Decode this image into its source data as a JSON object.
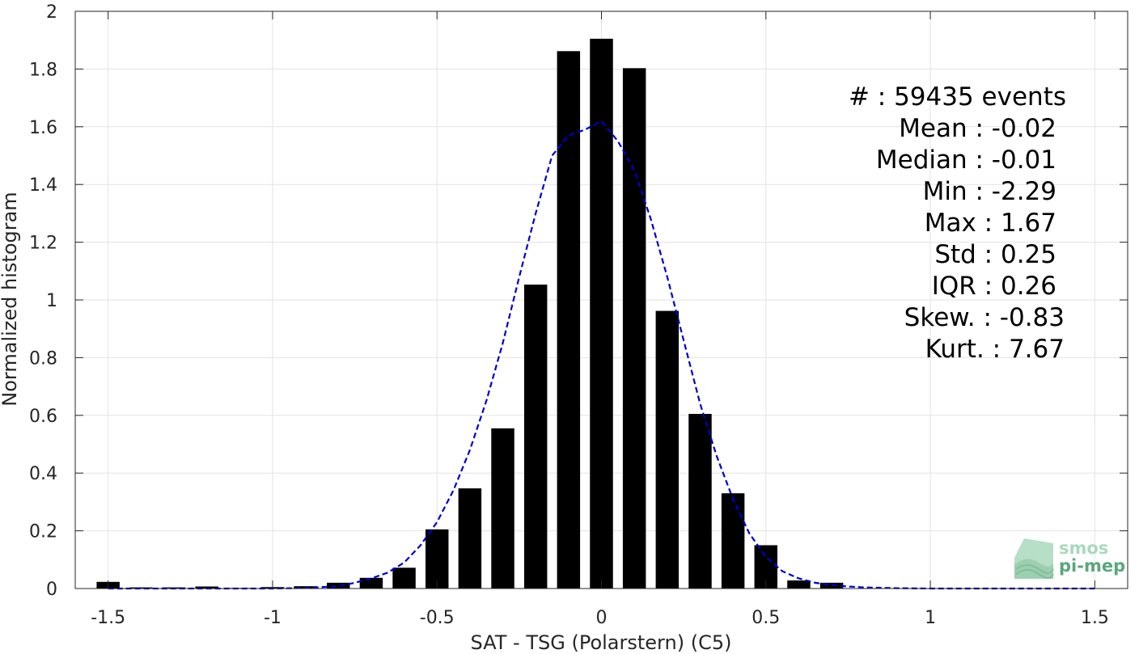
{
  "chart_data": {
    "type": "bar",
    "xlabel": "SAT - TSG (Polarstern) (C5)",
    "ylabel": "Normalized histogram",
    "xlim": [
      -1.6,
      1.6
    ],
    "ylim": [
      0,
      2
    ],
    "x_ticks": [
      -1.5,
      -1,
      -0.5,
      0,
      0.5,
      1,
      1.5
    ],
    "x_tick_labels": [
      "-1.5",
      "-1",
      "-0.5",
      "0",
      "0.5",
      "1",
      "1.5"
    ],
    "y_ticks": [
      0,
      0.2,
      0.4,
      0.6,
      0.8,
      1,
      1.2,
      1.4,
      1.6,
      1.8,
      2
    ],
    "y_tick_labels": [
      "0",
      "0.2",
      "0.4",
      "0.6",
      "0.8",
      "1",
      "1.2",
      "1.4",
      "1.6",
      "1.8",
      "2"
    ],
    "grid": true,
    "bar_width": 0.07,
    "bar_color": "#000000",
    "bars": {
      "x": [
        -1.5,
        -1.4,
        -1.3,
        -1.2,
        -1.1,
        -1.0,
        -0.9,
        -0.8,
        -0.7,
        -0.6,
        -0.5,
        -0.4,
        -0.3,
        -0.2,
        -0.1,
        0.0,
        0.1,
        0.2,
        0.3,
        0.4,
        0.5,
        0.6,
        0.7
      ],
      "values": [
        0.023,
        0.004,
        0.004,
        0.007,
        0.002,
        0.005,
        0.008,
        0.02,
        0.037,
        0.072,
        0.205,
        0.347,
        0.555,
        1.053,
        1.862,
        1.905,
        1.803,
        0.962,
        0.605,
        0.33,
        0.15,
        0.028,
        0.02
      ]
    },
    "fit_curve": {
      "color": "#0000cc",
      "style": "dashed",
      "x": [
        -1.5,
        -1.4,
        -1.3,
        -1.2,
        -1.1,
        -1.0,
        -0.9,
        -0.8,
        -0.75,
        -0.7,
        -0.65,
        -0.6,
        -0.55,
        -0.5,
        -0.45,
        -0.4,
        -0.35,
        -0.3,
        -0.25,
        -0.2,
        -0.15,
        -0.1,
        -0.05,
        0.0,
        0.05,
        0.1,
        0.15,
        0.2,
        0.25,
        0.3,
        0.35,
        0.4,
        0.45,
        0.5,
        0.55,
        0.6,
        0.65,
        0.7,
        0.75,
        0.8,
        0.9,
        1.0,
        1.1,
        1.2,
        1.3,
        1.4,
        1.5
      ],
      "y": [
        0.0,
        0.0,
        0.0,
        0.0,
        0.0,
        0.0,
        0.002,
        0.008,
        0.02,
        0.035,
        0.055,
        0.09,
        0.15,
        0.23,
        0.34,
        0.48,
        0.65,
        0.85,
        1.08,
        1.3,
        1.5,
        1.57,
        1.59,
        1.62,
        1.55,
        1.45,
        1.28,
        1.08,
        0.86,
        0.64,
        0.46,
        0.31,
        0.19,
        0.11,
        0.06,
        0.035,
        0.02,
        0.012,
        0.007,
        0.004,
        0.001,
        0.0,
        0.0,
        0.0,
        0.0,
        0.0,
        0.0
      ]
    },
    "annotation": [
      "#  : 59435 events",
      "Mean : -0.02",
      "Median : -0.01",
      "Min : -2.29",
      "Max : 1.67",
      "Std : 0.25",
      "IQR : 0.26",
      "Skew. : -0.83",
      "Kurt. : 7.67"
    ]
  },
  "logo": {
    "line1": "smos",
    "line2": "pi-mep",
    "color": "#5aa77a"
  },
  "colors": {
    "axis": "#262626",
    "grid": "#e3e3e3"
  }
}
